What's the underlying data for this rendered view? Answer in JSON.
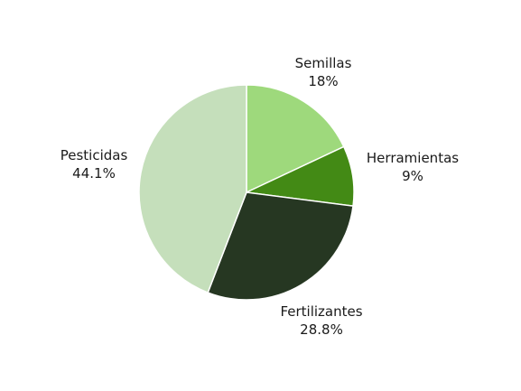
{
  "chart_data": {
    "type": "pie",
    "title": "",
    "slices": [
      {
        "name": "Semillas",
        "value": 18,
        "label": "18%",
        "color": "#9ed97c"
      },
      {
        "name": "Herramientas",
        "value": 9,
        "label": "9%",
        "color": "#438a15"
      },
      {
        "name": "Fertilizantes",
        "value": 28.8,
        "label": "28.8%",
        "color": "#263722"
      },
      {
        "name": "Pesticidas",
        "value": 44.1,
        "label": "44.1%",
        "color": "#c5dfbb"
      }
    ],
    "start": "12 o'clock",
    "direction": "clockwise",
    "legend": "none"
  }
}
